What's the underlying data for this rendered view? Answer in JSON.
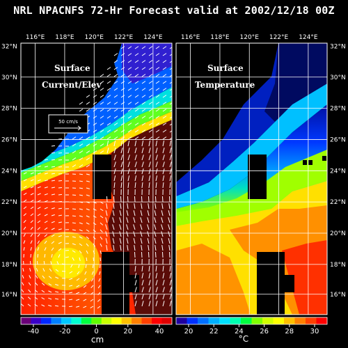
{
  "title": "NRL NPACNFS 72-Hr Forecast valid at 2002/12/18 00Z",
  "longitude_labels": [
    "116°E",
    "118°E",
    "120°E",
    "122°E",
    "124°E"
  ],
  "latitude_labels": [
    "32°N",
    "30°N",
    "28°N",
    "26°N",
    "24°N",
    "22°N",
    "20°N",
    "18°N",
    "16°N"
  ],
  "left_panel": {
    "annotation_line1": "Surface",
    "annotation_line2": "Current/Elev",
    "scale_label": "50 cm/s",
    "colorbar_ticks": [
      "-40",
      "-20",
      "0",
      "20",
      "40"
    ],
    "colorbar_unit": "cm"
  },
  "right_panel": {
    "annotation_line1": "Surface",
    "annotation_line2": "Temperature",
    "colorbar_ticks": [
      "20",
      "22",
      "24",
      "26",
      "28",
      "30"
    ],
    "colorbar_unit": "°C"
  },
  "colors": {
    "colormap": [
      "#6a0078",
      "#3a00c8",
      "#0028ff",
      "#0080ff",
      "#00c8ff",
      "#00ffd0",
      "#00ff40",
      "#60ff00",
      "#c8ff00",
      "#ffff00",
      "#ffc000",
      "#ff8000",
      "#ff4000",
      "#ff0000",
      "#e00000",
      "#5a0c08"
    ],
    "land": "#000000",
    "grid": "#ffffff"
  }
}
